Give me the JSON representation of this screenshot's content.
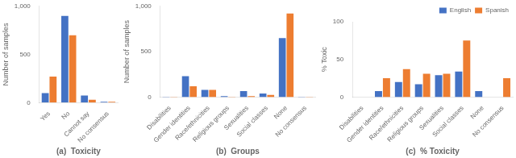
{
  "chart_data": [
    {
      "type": "bar",
      "categories": [
        "Yes",
        "No",
        "Cannot say",
        "No consensus"
      ],
      "series": [
        {
          "name": "English",
          "color": "#4472C4",
          "values": [
            100,
            900,
            75,
            10
          ]
        },
        {
          "name": "Spanish",
          "color": "#ED7D31",
          "values": [
            270,
            700,
            30,
            10
          ]
        }
      ],
      "xlabel": "(a)  Toxicity",
      "ylabel": "Number of samples",
      "ylim": [
        0,
        1000
      ],
      "yticks": [
        0,
        500,
        {
          "value": 1000,
          "label": "1,000"
        }
      ],
      "grid": false
    },
    {
      "type": "bar",
      "categories": [
        "Disabilities",
        "Gender identities",
        "Race/ethnicities",
        "Religious groups",
        "Sexualities",
        "Social classes",
        "None",
        "No consensus"
      ],
      "series": [
        {
          "name": "English",
          "color": "#4472C4",
          "values": [
            5,
            230,
            80,
            10,
            65,
            40,
            650,
            5
          ]
        },
        {
          "name": "Spanish",
          "color": "#ED7D31",
          "values": [
            5,
            120,
            80,
            5,
            10,
            25,
            920,
            5
          ]
        }
      ],
      "xlabel": "(b)  Groups",
      "ylabel": "Number of samples",
      "ylim": [
        0,
        1000
      ],
      "yticks": [
        0,
        500,
        {
          "value": 1000,
          "label": "1,000"
        }
      ],
      "grid": false
    },
    {
      "type": "bar",
      "categories": [
        "Disabilities",
        "Gender identities",
        "Race/ethnicities",
        "Religious groups",
        "Sexualities",
        "Social classes",
        "None",
        "No consensus"
      ],
      "series": [
        {
          "name": "English",
          "color": "#4472C4",
          "values": [
            0,
            8,
            20,
            17,
            29,
            34,
            8,
            0
          ]
        },
        {
          "name": "Spanish",
          "color": "#ED7D31",
          "values": [
            0,
            25,
            37,
            31,
            31,
            75,
            0,
            25
          ]
        }
      ],
      "xlabel": "(c)  % Toxicity",
      "ylabel": "% Toxic",
      "ylim": [
        0,
        100
      ],
      "yticks": [
        0,
        50,
        100
      ],
      "grid": false,
      "legend": "upper right"
    }
  ]
}
